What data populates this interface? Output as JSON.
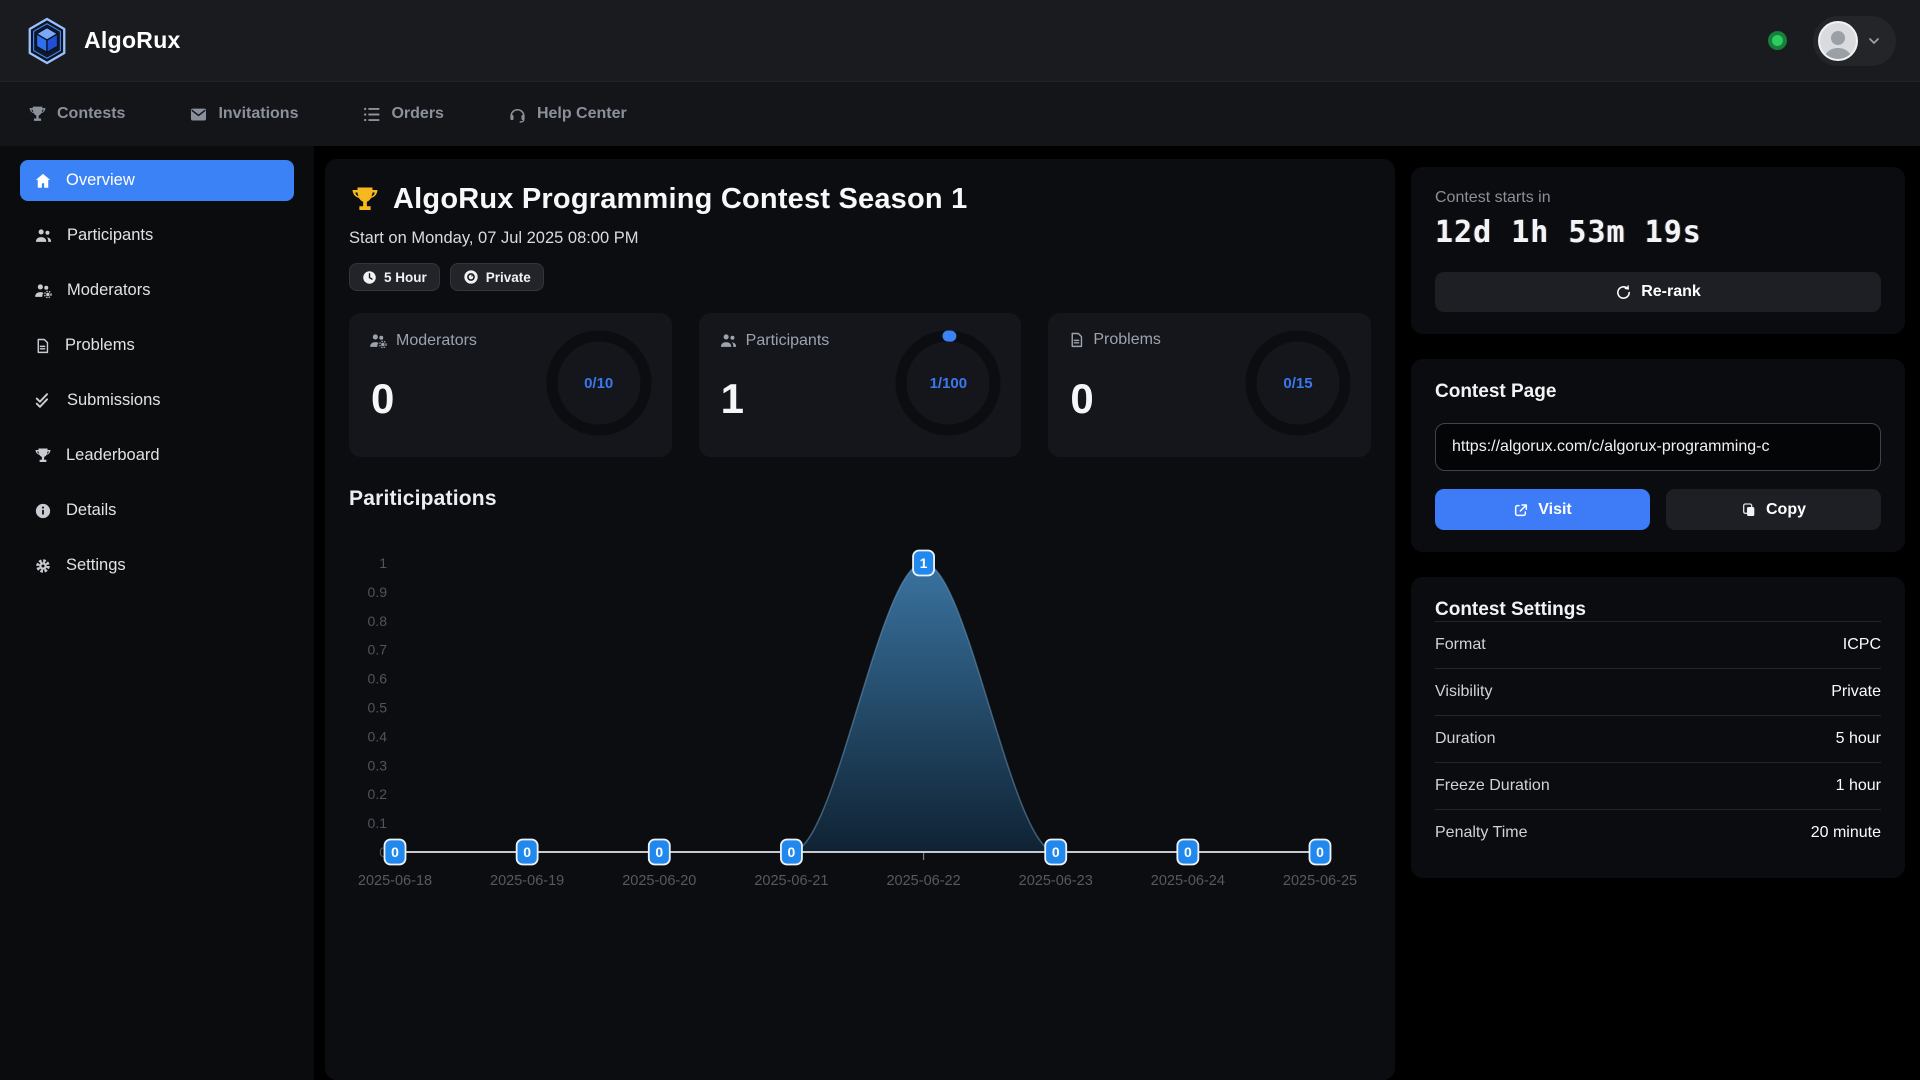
{
  "brand": {
    "name": "AlgoRux"
  },
  "topnav": {
    "items": [
      {
        "label": "Contests",
        "icon": "trophy-icon"
      },
      {
        "label": "Invitations",
        "icon": "envelope-icon"
      },
      {
        "label": "Orders",
        "icon": "list-icon"
      },
      {
        "label": "Help Center",
        "icon": "headset-icon"
      }
    ]
  },
  "sidebar": {
    "items": [
      {
        "label": "Overview",
        "icon": "home-icon",
        "active": true
      },
      {
        "label": "Participants",
        "icon": "users-icon",
        "active": false
      },
      {
        "label": "Moderators",
        "icon": "users-gear-icon",
        "active": false
      },
      {
        "label": "Problems",
        "icon": "file-icon",
        "active": false
      },
      {
        "label": "Submissions",
        "icon": "double-check-icon",
        "active": false
      },
      {
        "label": "Leaderboard",
        "icon": "trophy-icon",
        "active": false
      },
      {
        "label": "Details",
        "icon": "info-icon",
        "active": false
      },
      {
        "label": "Settings",
        "icon": "gear-icon",
        "active": false
      }
    ]
  },
  "header": {
    "title": "AlgoRux Programming Contest Season 1",
    "start_text": "Start on Monday, 07 Jul 2025 08:00 PM",
    "badges": [
      {
        "label": "5 Hour",
        "icon": "clock-icon"
      },
      {
        "label": "Private",
        "icon": "eye-icon"
      }
    ]
  },
  "stats": [
    {
      "label": "Moderators",
      "icon": "users-gear-icon",
      "value": "0",
      "ratio": "0/10",
      "progress": 0
    },
    {
      "label": "Participants",
      "icon": "users-icon",
      "value": "1",
      "ratio": "1/100",
      "progress": 0.01
    },
    {
      "label": "Problems",
      "icon": "file-icon",
      "value": "0",
      "ratio": "0/15",
      "progress": 0
    }
  ],
  "chart_data": {
    "type": "area",
    "title": "Pariticipations",
    "categories": [
      "2025-06-18",
      "2025-06-19",
      "2025-06-20",
      "2025-06-21",
      "2025-06-22",
      "2025-06-23",
      "2025-06-24",
      "2025-06-25"
    ],
    "values": [
      0,
      0,
      0,
      0,
      1,
      0,
      0,
      0
    ],
    "xlabel": "",
    "ylabel": "",
    "ylim": [
      0,
      1
    ],
    "ytick_step": 0.1,
    "grid": false,
    "legend": "none",
    "marker_color": "#2188ee",
    "area_top_color": "#3c79a8",
    "area_bottom_color": "#102538"
  },
  "countdown": {
    "label": "Contest starts in",
    "value": "12d 1h 53m 19s",
    "rerank_label": "Re-rank"
  },
  "contest_page": {
    "title": "Contest Page",
    "url": "https://algorux.com/c/algorux-programming-c",
    "visit_label": "Visit",
    "copy_label": "Copy"
  },
  "contest_settings": {
    "title": "Contest Settings",
    "rows": [
      {
        "label": "Format",
        "value": "ICPC"
      },
      {
        "label": "Visibility",
        "value": "Private"
      },
      {
        "label": "Duration",
        "value": "5 hour"
      },
      {
        "label": "Freeze Duration",
        "value": "1 hour"
      },
      {
        "label": "Penalty Time",
        "value": "20 minute"
      }
    ]
  },
  "colors": {
    "accent": "#3b82f6",
    "status_green": "#2ecc5e",
    "gold": "#f6b820"
  }
}
